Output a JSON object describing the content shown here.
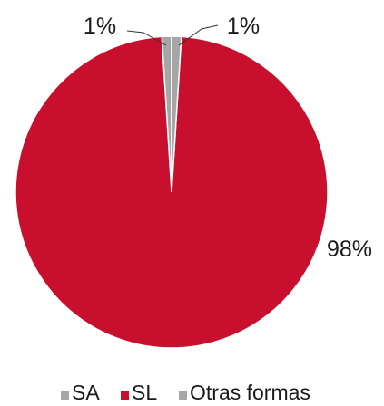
{
  "chart_data": {
    "type": "pie",
    "slices": [
      {
        "label": "SA",
        "value": 1,
        "display": "1%",
        "color": "#a6a6a6"
      },
      {
        "label": "SL",
        "value": 98,
        "display": "98%",
        "color": "#c8102e"
      },
      {
        "label": "Otras formas",
        "value": 1,
        "display": "1%",
        "color": "#a6a6a6"
      }
    ],
    "legend_position": "bottom",
    "start_angle_deg": 0,
    "direction": "clockwise"
  }
}
